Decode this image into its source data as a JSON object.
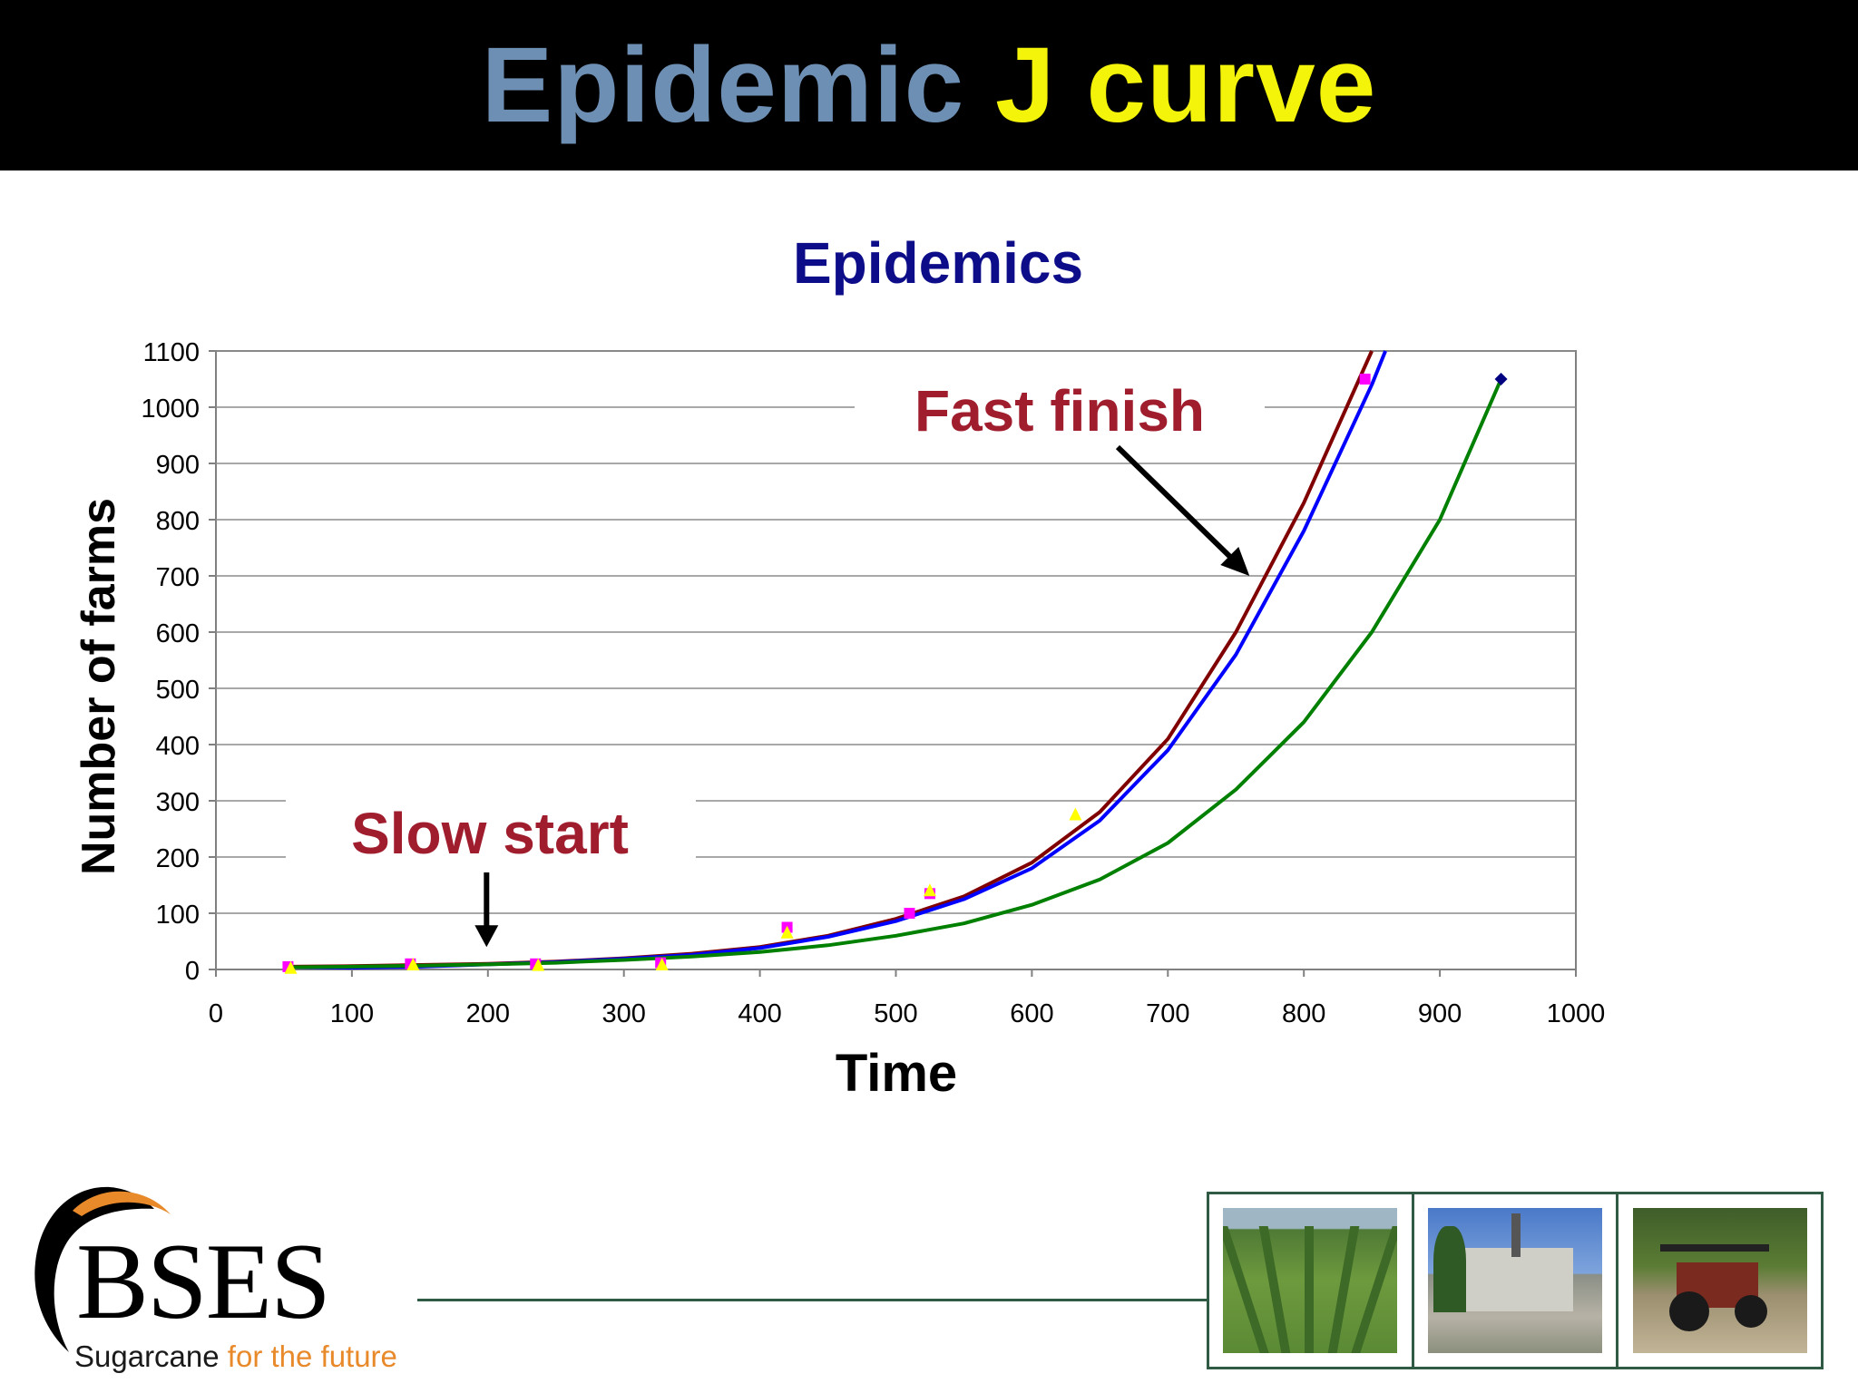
{
  "slide": {
    "title_part_1": "Epidemic",
    "title_part_2": "J curve"
  },
  "chart_data": {
    "type": "line",
    "title": "Epidemics",
    "xlabel": "Time",
    "ylabel": "Number of farms",
    "xlim": [
      0,
      1000
    ],
    "ylim": [
      0,
      1100
    ],
    "x_ticks": [
      0,
      100,
      200,
      300,
      400,
      500,
      600,
      700,
      800,
      900,
      1000
    ],
    "y_ticks": [
      0,
      100,
      200,
      300,
      400,
      500,
      600,
      700,
      800,
      900,
      1000,
      1100
    ],
    "grid": "horizontal",
    "series": [
      {
        "color": "#800000",
        "values": [
          [
            55,
            5
          ],
          [
            100,
            6
          ],
          [
            150,
            8
          ],
          [
            200,
            10
          ],
          [
            250,
            14
          ],
          [
            300,
            20
          ],
          [
            350,
            28
          ],
          [
            400,
            40
          ],
          [
            450,
            60
          ],
          [
            500,
            90
          ],
          [
            550,
            130
          ],
          [
            600,
            190
          ],
          [
            650,
            280
          ],
          [
            700,
            410
          ],
          [
            750,
            600
          ],
          [
            800,
            830
          ],
          [
            850,
            1100
          ]
        ]
      },
      {
        "color": "#0000ff",
        "values": [
          [
            55,
            4
          ],
          [
            100,
            3
          ],
          [
            150,
            5
          ],
          [
            200,
            9
          ],
          [
            250,
            13
          ],
          [
            300,
            19
          ],
          [
            350,
            26
          ],
          [
            400,
            38
          ],
          [
            450,
            58
          ],
          [
            500,
            86
          ],
          [
            550,
            125
          ],
          [
            600,
            180
          ],
          [
            650,
            265
          ],
          [
            700,
            390
          ],
          [
            750,
            560
          ],
          [
            800,
            780
          ],
          [
            850,
            1040
          ],
          [
            860,
            1100
          ]
        ]
      },
      {
        "color": "#008000",
        "values": [
          [
            55,
            4
          ],
          [
            100,
            5
          ],
          [
            150,
            7
          ],
          [
            200,
            9
          ],
          [
            250,
            12
          ],
          [
            300,
            17
          ],
          [
            350,
            23
          ],
          [
            400,
            31
          ],
          [
            450,
            43
          ],
          [
            500,
            60
          ],
          [
            550,
            82
          ],
          [
            600,
            115
          ],
          [
            650,
            160
          ],
          [
            700,
            225
          ],
          [
            750,
            320
          ],
          [
            800,
            440
          ],
          [
            850,
            600
          ],
          [
            900,
            800
          ],
          [
            945,
            1050
          ]
        ]
      }
    ],
    "observations": [
      {
        "color": "#ff00ff",
        "marker": "square",
        "points": [
          [
            53,
            5
          ],
          [
            143,
            10
          ],
          [
            235,
            10
          ],
          [
            327,
            12
          ],
          [
            420,
            75
          ],
          [
            510,
            100
          ],
          [
            525,
            135
          ],
          [
            845,
            1050
          ]
        ]
      },
      {
        "color": "#ffff00",
        "marker": "triangle",
        "points": [
          [
            55,
            2
          ],
          [
            145,
            8
          ],
          [
            237,
            7
          ],
          [
            328,
            8
          ],
          [
            420,
            65
          ],
          [
            525,
            140
          ],
          [
            632,
            275
          ]
        ]
      },
      {
        "color": "#000080",
        "marker": "diamond",
        "points": [
          [
            945,
            1050
          ]
        ]
      }
    ],
    "annotations": [
      {
        "text": "Fast finish",
        "color": "#a01d2e",
        "arrow_to": [
          760,
          700
        ]
      },
      {
        "text": "Slow start",
        "color": "#a01d2e",
        "arrow_to": [
          195,
          40
        ]
      }
    ]
  },
  "footer": {
    "logo_text": "BSES",
    "tagline_part_1": "Sugarcane ",
    "tagline_part_2": "for the future",
    "photos": [
      "sugarcane-field-photo",
      "sugar-mill-photo",
      "tractor-photo"
    ]
  }
}
